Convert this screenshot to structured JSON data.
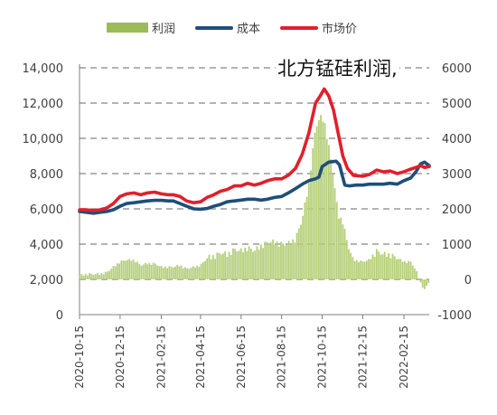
{
  "chart_data": {
    "type": "line",
    "legend": [
      {
        "name": "利润",
        "kind": "bar",
        "color": "#9bbb59"
      },
      {
        "name": "成本",
        "kind": "line",
        "color": "#1f4e79"
      },
      {
        "name": "市场价",
        "kind": "line",
        "color": "#e0202c"
      }
    ],
    "annotation": "北方锰硅利润,",
    "left_axis": {
      "min": 0,
      "max": 14000,
      "step": 2000,
      "ticks": [
        "0",
        "2,000",
        "4,000",
        "6,000",
        "8,000",
        "10,000",
        "12,000",
        "14,000"
      ]
    },
    "right_axis": {
      "min": -1000,
      "max": 6000,
      "step": 1000,
      "ticks": [
        "-1000",
        "0",
        "1000",
        "2000",
        "3000",
        "4000",
        "5000",
        "6000"
      ]
    },
    "x_ticks": [
      "2020-10-15",
      "2020-12-15",
      "2021-02-15",
      "2021-04-15",
      "2021-06-15",
      "2021-08-15",
      "2021-10-15",
      "2021-12-15",
      "2022-02-15"
    ],
    "x_range": [
      "2020-10-15",
      "2022-03-25"
    ],
    "grid": true,
    "series": [
      {
        "name": "成本",
        "color": "#1f4e79",
        "points": [
          [
            "2020-10-15",
            5850
          ],
          [
            "2020-10-25",
            5800
          ],
          [
            "2020-11-05",
            5750
          ],
          [
            "2020-11-15",
            5800
          ],
          [
            "2020-11-25",
            5850
          ],
          [
            "2020-12-05",
            5950
          ],
          [
            "2020-12-15",
            6150
          ],
          [
            "2020-12-25",
            6300
          ],
          [
            "2021-01-05",
            6350
          ],
          [
            "2021-01-15",
            6400
          ],
          [
            "2021-01-25",
            6450
          ],
          [
            "2021-02-05",
            6480
          ],
          [
            "2021-02-15",
            6480
          ],
          [
            "2021-02-25",
            6450
          ],
          [
            "2021-03-05",
            6450
          ],
          [
            "2021-03-15",
            6300
          ],
          [
            "2021-03-25",
            6150
          ],
          [
            "2021-04-05",
            6000
          ],
          [
            "2021-04-15",
            5980
          ],
          [
            "2021-04-25",
            6020
          ],
          [
            "2021-05-05",
            6150
          ],
          [
            "2021-05-15",
            6250
          ],
          [
            "2021-05-25",
            6400
          ],
          [
            "2021-06-05",
            6450
          ],
          [
            "2021-06-15",
            6500
          ],
          [
            "2021-06-25",
            6550
          ],
          [
            "2021-07-05",
            6550
          ],
          [
            "2021-07-15",
            6500
          ],
          [
            "2021-07-25",
            6550
          ],
          [
            "2021-08-05",
            6650
          ],
          [
            "2021-08-15",
            6700
          ],
          [
            "2021-08-25",
            6900
          ],
          [
            "2021-09-05",
            7150
          ],
          [
            "2021-09-15",
            7400
          ],
          [
            "2021-09-25",
            7600
          ],
          [
            "2021-10-05",
            7700
          ],
          [
            "2021-10-10",
            7800
          ],
          [
            "2021-10-15",
            8400
          ],
          [
            "2021-10-25",
            8650
          ],
          [
            "2021-11-05",
            8700
          ],
          [
            "2021-11-10",
            8500
          ],
          [
            "2021-11-18",
            7350
          ],
          [
            "2021-11-25",
            7300
          ],
          [
            "2021-12-05",
            7350
          ],
          [
            "2021-12-15",
            7350
          ],
          [
            "2021-12-25",
            7400
          ],
          [
            "2022-01-05",
            7400
          ],
          [
            "2022-01-15",
            7400
          ],
          [
            "2022-01-25",
            7450
          ],
          [
            "2022-02-05",
            7400
          ],
          [
            "2022-02-15",
            7600
          ],
          [
            "2022-02-25",
            7750
          ],
          [
            "2022-03-05",
            8100
          ],
          [
            "2022-03-12",
            8550
          ],
          [
            "2022-03-18",
            8650
          ],
          [
            "2022-03-25",
            8450
          ]
        ]
      },
      {
        "name": "市场价",
        "color": "#e0202c",
        "points": [
          [
            "2020-10-15",
            5950
          ],
          [
            "2020-10-25",
            5950
          ],
          [
            "2020-11-05",
            5900
          ],
          [
            "2020-11-15",
            5950
          ],
          [
            "2020-11-25",
            6050
          ],
          [
            "2020-12-05",
            6300
          ],
          [
            "2020-12-15",
            6700
          ],
          [
            "2020-12-25",
            6850
          ],
          [
            "2021-01-05",
            6900
          ],
          [
            "2021-01-15",
            6800
          ],
          [
            "2021-01-25",
            6900
          ],
          [
            "2021-02-05",
            6950
          ],
          [
            "2021-02-15",
            6850
          ],
          [
            "2021-02-25",
            6800
          ],
          [
            "2021-03-05",
            6800
          ],
          [
            "2021-03-15",
            6700
          ],
          [
            "2021-03-25",
            6450
          ],
          [
            "2021-04-05",
            6350
          ],
          [
            "2021-04-15",
            6400
          ],
          [
            "2021-04-25",
            6650
          ],
          [
            "2021-05-05",
            6800
          ],
          [
            "2021-05-15",
            7000
          ],
          [
            "2021-05-25",
            7100
          ],
          [
            "2021-06-05",
            7300
          ],
          [
            "2021-06-15",
            7300
          ],
          [
            "2021-06-25",
            7450
          ],
          [
            "2021-07-05",
            7350
          ],
          [
            "2021-07-15",
            7450
          ],
          [
            "2021-07-25",
            7600
          ],
          [
            "2021-08-05",
            7700
          ],
          [
            "2021-08-15",
            7700
          ],
          [
            "2021-08-25",
            7900
          ],
          [
            "2021-09-05",
            8300
          ],
          [
            "2021-09-15",
            9100
          ],
          [
            "2021-09-25",
            10300
          ],
          [
            "2021-10-05",
            12000
          ],
          [
            "2021-10-12",
            12400
          ],
          [
            "2021-10-18",
            12800
          ],
          [
            "2021-10-25",
            12400
          ],
          [
            "2021-11-01",
            11600
          ],
          [
            "2021-11-08",
            10300
          ],
          [
            "2021-11-15",
            9000
          ],
          [
            "2021-11-22",
            8300
          ],
          [
            "2021-12-01",
            7900
          ],
          [
            "2021-12-15",
            7850
          ],
          [
            "2021-12-25",
            7950
          ],
          [
            "2022-01-05",
            8200
          ],
          [
            "2022-01-15",
            8100
          ],
          [
            "2022-01-25",
            8150
          ],
          [
            "2022-02-05",
            8000
          ],
          [
            "2022-02-15",
            8100
          ],
          [
            "2022-02-25",
            8250
          ],
          [
            "2022-03-05",
            8350
          ],
          [
            "2022-03-12",
            8450
          ],
          [
            "2022-03-18",
            8350
          ],
          [
            "2022-03-25",
            8400
          ]
        ]
      },
      {
        "name": "利润",
        "kind": "area",
        "color": "#9bbb59",
        "points": [
          [
            "2020-10-15",
            100
          ],
          [
            "2020-10-25",
            150
          ],
          [
            "2020-11-05",
            150
          ],
          [
            "2020-11-15",
            150
          ],
          [
            "2020-11-25",
            200
          ],
          [
            "2020-12-05",
            350
          ],
          [
            "2020-12-15",
            500
          ],
          [
            "2020-12-25",
            550
          ],
          [
            "2021-01-05",
            550
          ],
          [
            "2021-01-15",
            400
          ],
          [
            "2021-01-25",
            450
          ],
          [
            "2021-02-05",
            450
          ],
          [
            "2021-02-15",
            350
          ],
          [
            "2021-02-25",
            350
          ],
          [
            "2021-03-05",
            350
          ],
          [
            "2021-03-15",
            400
          ],
          [
            "2021-03-25",
            300
          ],
          [
            "2021-04-05",
            350
          ],
          [
            "2021-04-15",
            400
          ],
          [
            "2021-04-25",
            600
          ],
          [
            "2021-05-05",
            650
          ],
          [
            "2021-05-15",
            750
          ],
          [
            "2021-05-25",
            700
          ],
          [
            "2021-06-05",
            850
          ],
          [
            "2021-06-15",
            800
          ],
          [
            "2021-06-25",
            900
          ],
          [
            "2021-07-05",
            800
          ],
          [
            "2021-07-15",
            950
          ],
          [
            "2021-07-25",
            1050
          ],
          [
            "2021-08-05",
            1050
          ],
          [
            "2021-08-15",
            1000
          ],
          [
            "2021-08-25",
            1000
          ],
          [
            "2021-09-05",
            1150
          ],
          [
            "2021-09-15",
            1700
          ],
          [
            "2021-09-25",
            2700
          ],
          [
            "2021-10-05",
            4300
          ],
          [
            "2021-10-12",
            4600
          ],
          [
            "2021-10-18",
            4500
          ],
          [
            "2021-10-25",
            3750
          ],
          [
            "2021-11-01",
            2900
          ],
          [
            "2021-11-08",
            1800
          ],
          [
            "2021-11-15",
            1650
          ],
          [
            "2021-11-22",
            1000
          ],
          [
            "2021-12-01",
            550
          ],
          [
            "2021-12-15",
            500
          ],
          [
            "2021-12-25",
            550
          ],
          [
            "2022-01-05",
            800
          ],
          [
            "2022-01-15",
            700
          ],
          [
            "2022-01-25",
            700
          ],
          [
            "2022-02-05",
            600
          ],
          [
            "2022-02-15",
            500
          ],
          [
            "2022-02-25",
            500
          ],
          [
            "2022-03-05",
            250
          ],
          [
            "2022-03-12",
            -100
          ],
          [
            "2022-03-18",
            -300
          ],
          [
            "2022-03-25",
            -50
          ]
        ]
      }
    ]
  }
}
